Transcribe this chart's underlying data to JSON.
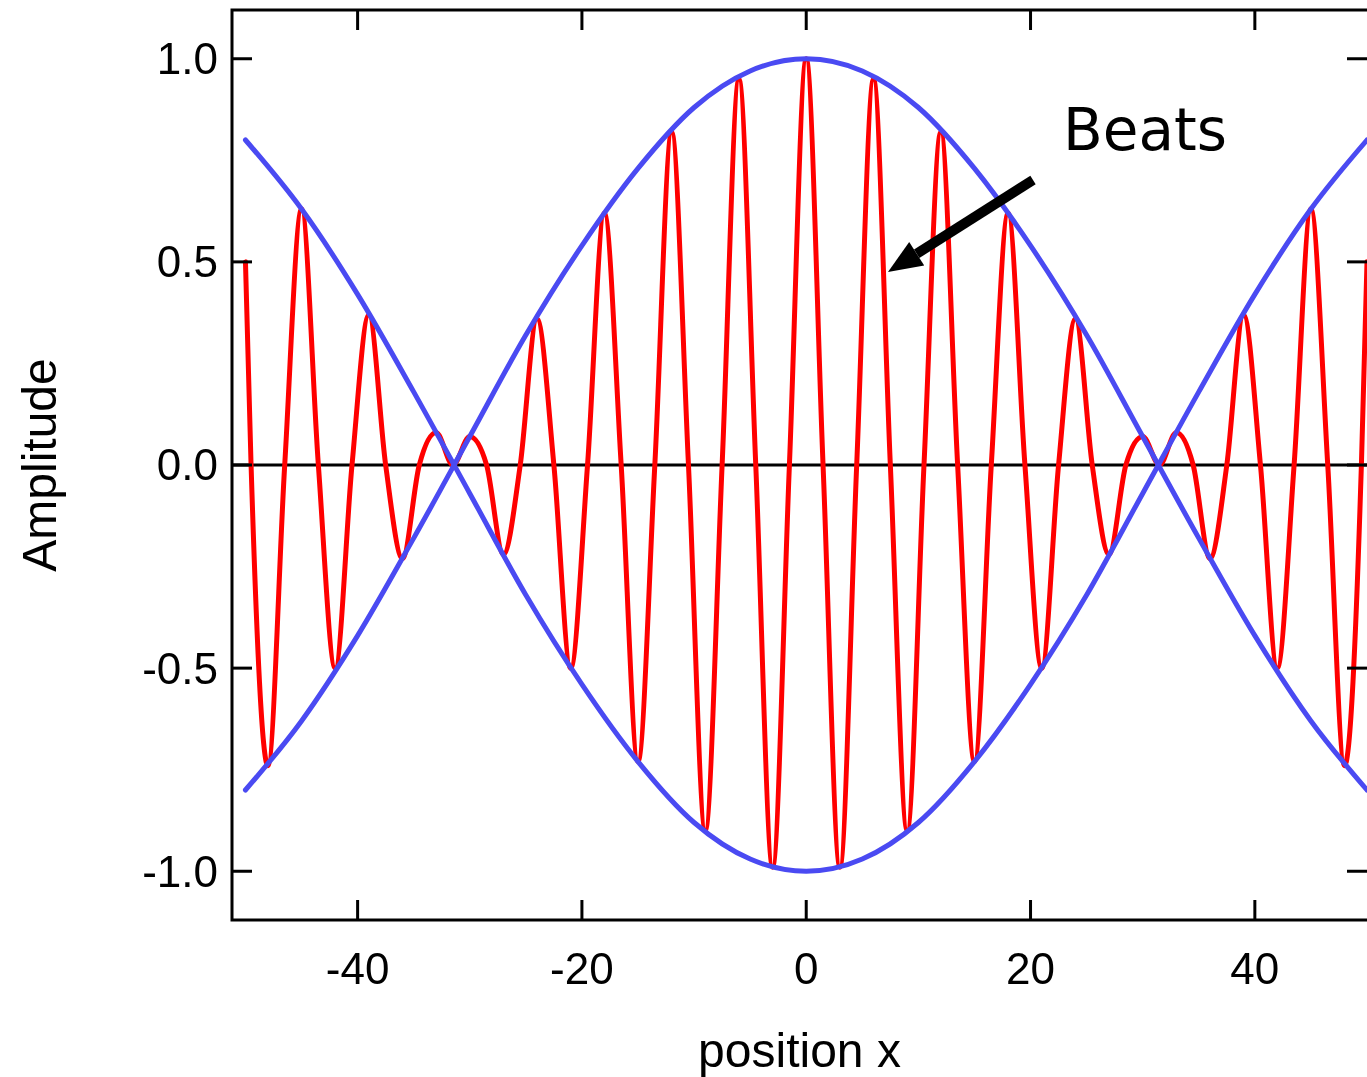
{
  "chart_data": {
    "type": "line",
    "xlabel": "position x",
    "ylabel": "Amplitude",
    "xlim": [
      -51.2,
      50
    ],
    "ylim": [
      -1.12,
      1.12
    ],
    "xticks": [
      -40,
      -20,
      0,
      20,
      40
    ],
    "yticks": [
      {
        "value": -1,
        "label": "-1.0"
      },
      {
        "value": -0.5,
        "label": "-0.5"
      },
      {
        "value": 0,
        "label": "0.0"
      },
      {
        "value": 0.5,
        "label": "0.5"
      },
      {
        "value": 1,
        "label": "1.0"
      }
    ],
    "grid": false,
    "marker": "none",
    "line_style": "solid",
    "series": [
      {
        "color": "#ff0000",
        "x": [
          -50,
          -49.5,
          -48,
          -46.5,
          -45,
          -43.5,
          -42,
          -40.5,
          -39,
          -37.5,
          -36,
          -34.5,
          -33,
          -31.5,
          -30,
          -28.5,
          -27,
          -25.5,
          -24,
          -22.5,
          -21,
          -19.5,
          -18,
          -16.5,
          -15,
          -13.5,
          -12,
          -10.5,
          -9,
          -7.5,
          -6,
          -4.5,
          -3,
          -1.5,
          0,
          1.5,
          3,
          4.5,
          6,
          7.5,
          9,
          10.5,
          12,
          13.5,
          15,
          16.5,
          18,
          19.5,
          21,
          22.5,
          24,
          25.5,
          27,
          28.5,
          30,
          31.5,
          33,
          34.5,
          36,
          37.5,
          39,
          40.5,
          42,
          43.5,
          45,
          46.5,
          48,
          49.5,
          50
        ],
        "values": [
          0.5,
          0,
          -0.74,
          0,
          0.63,
          0,
          -0.5,
          0,
          0.37,
          0,
          -0.23,
          0,
          0.08,
          0,
          0.07,
          0,
          -0.22,
          0,
          0.36,
          0,
          -0.5,
          0,
          0.62,
          0,
          -0.73,
          0,
          0.82,
          0,
          -0.9,
          0,
          0.95,
          0,
          -0.99,
          0,
          1,
          0,
          -0.99,
          0,
          0.95,
          0,
          -0.9,
          0,
          0.82,
          0,
          -0.73,
          0,
          0.62,
          0,
          -0.5,
          0,
          0.36,
          0,
          -0.22,
          0,
          0.07,
          0,
          0.08,
          0,
          -0.23,
          0,
          0.37,
          0,
          -0.5,
          0,
          0.63,
          0,
          -0.74,
          0,
          0.5
        ]
      },
      {
        "color": "#4a4af2",
        "x": [
          -50,
          -45,
          -40,
          -35,
          -30,
          -25,
          -20,
          -15,
          -10,
          -5,
          0,
          5,
          10,
          15,
          20,
          25,
          30,
          35,
          40,
          45,
          50
        ],
        "values": [
          -0.8,
          -0.63,
          -0.42,
          -0.18,
          0.07,
          0.32,
          0.54,
          0.73,
          0.88,
          0.97,
          1,
          0.97,
          0.88,
          0.73,
          0.54,
          0.32,
          0.07,
          -0.18,
          -0.42,
          -0.63,
          -0.8
        ]
      },
      {
        "color": "#4a4af2",
        "x": [
          -50,
          -45,
          -40,
          -35,
          -30,
          -25,
          -20,
          -15,
          -10,
          -5,
          0,
          5,
          10,
          15,
          20,
          25,
          30,
          35,
          40,
          45,
          50
        ],
        "values": [
          0.8,
          0.63,
          0.42,
          0.18,
          -0.07,
          -0.32,
          -0.54,
          -0.73,
          -0.88,
          -0.97,
          -1,
          -0.97,
          -0.88,
          -0.73,
          -0.54,
          -0.32,
          -0.07,
          0.18,
          0.42,
          0.63,
          0.8
        ]
      }
    ],
    "ref_lines": [
      {
        "axis": "y",
        "value": 0,
        "color": "#000000"
      }
    ],
    "annotations": [
      "Beats"
    ]
  }
}
